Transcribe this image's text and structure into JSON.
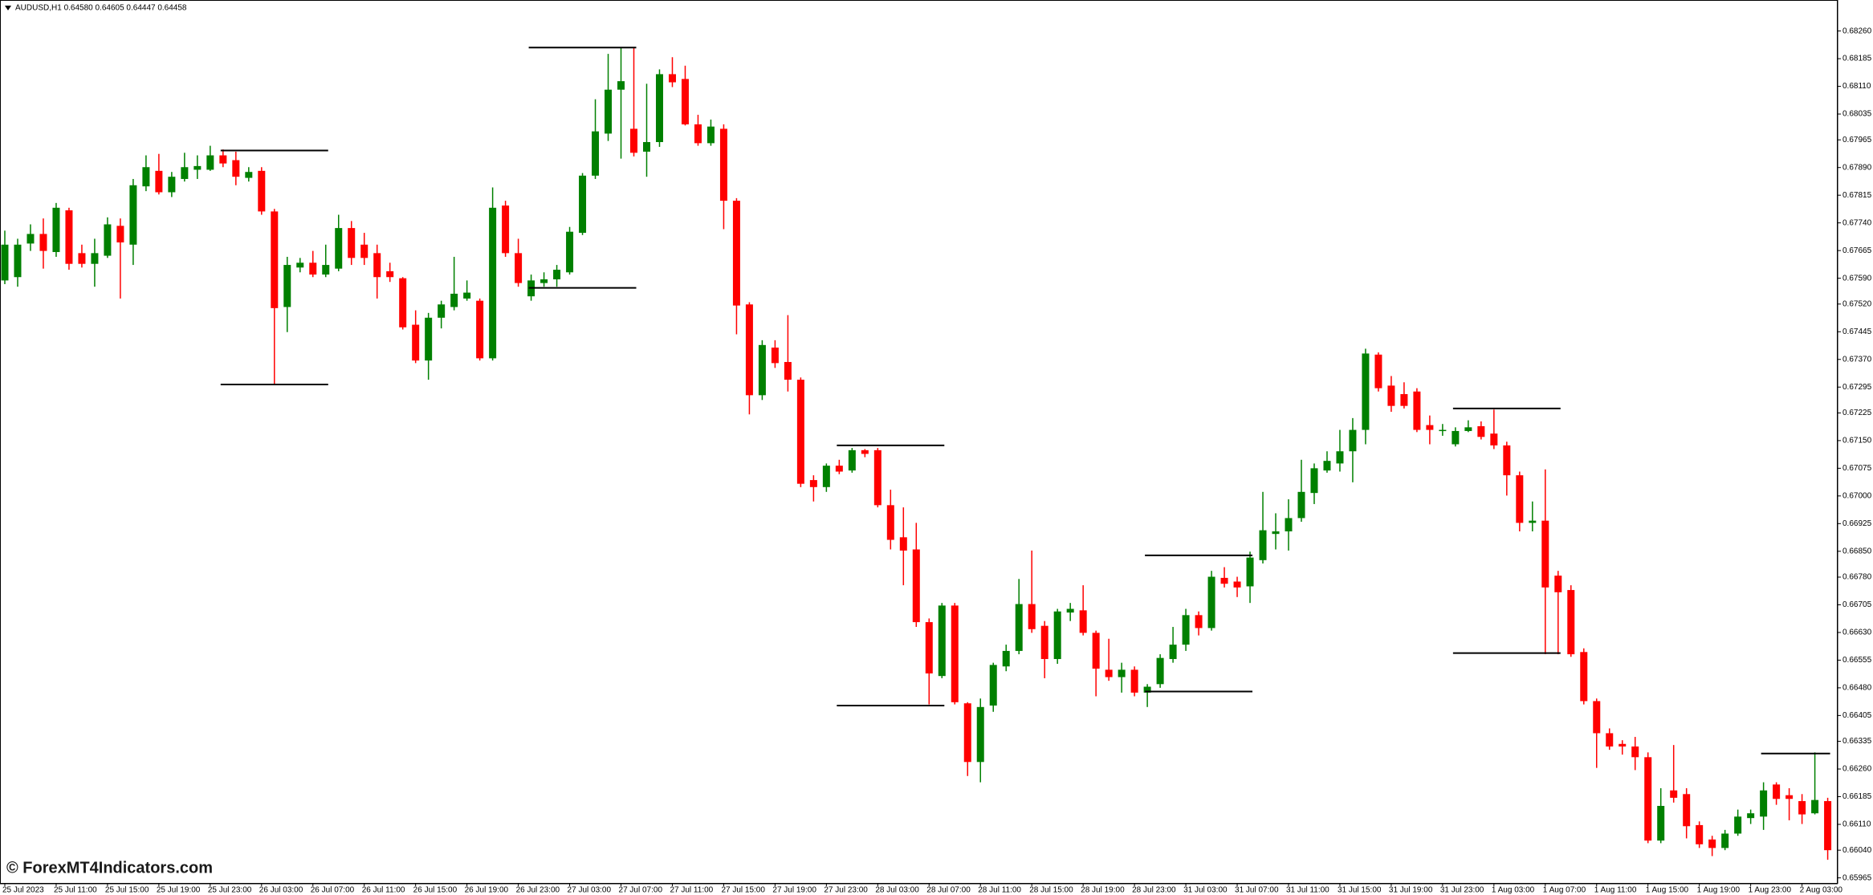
{
  "chart_data": {
    "type": "candlestick",
    "title": "AUDUSD,H1  0.64580 0.64605 0.64447 0.64458",
    "watermark": "© ForexMT4Indicators.com",
    "up_color": "#008000",
    "down_color": "#ff0000",
    "level_color": "#000000",
    "categories": [
      "25 Jul 2023",
      null,
      null,
      null,
      "25 Jul 11:00",
      null,
      null,
      null,
      "25 Jul 15:00",
      null,
      null,
      null,
      "25 Jul 19:00",
      null,
      null,
      null,
      "25 Jul 23:00",
      null,
      null,
      null,
      "26 Jul 03:00",
      null,
      null,
      null,
      "26 Jul 07:00",
      null,
      null,
      null,
      "26 Jul 11:00",
      null,
      null,
      null,
      "26 Jul 15:00",
      null,
      null,
      null,
      "26 Jul 19:00",
      null,
      null,
      null,
      "26 Jul 23:00",
      null,
      null,
      null,
      "27 Jul 03:00",
      null,
      null,
      null,
      "27 Jul 07:00",
      null,
      null,
      null,
      "27 Jul 11:00",
      null,
      null,
      null,
      "27 Jul 15:00",
      null,
      null,
      null,
      "27 Jul 19:00",
      null,
      null,
      null,
      "27 Jul 23:00",
      null,
      null,
      null,
      "28 Jul 03:00",
      null,
      null,
      null,
      "28 Jul 07:00",
      null,
      null,
      null,
      "28 Jul 11:00",
      null,
      null,
      null,
      "28 Jul 15:00",
      null,
      null,
      null,
      "28 Jul 19:00",
      null,
      null,
      null,
      "28 Jul 23:00",
      null,
      null,
      null,
      "31 Jul 03:00",
      null,
      null,
      null,
      "31 Jul 07:00",
      null,
      null,
      null,
      "31 Jul 11:00",
      null,
      null,
      null,
      "31 Jul 15:00",
      null,
      null,
      null,
      "31 Jul 19:00",
      null,
      null,
      null,
      "31 Jul 23:00",
      null,
      null,
      null,
      "1 Aug 03:00",
      null,
      null,
      null,
      "1 Aug 07:00",
      null,
      null,
      null,
      "1 Aug 11:00",
      null,
      null,
      null,
      "1 Aug 15:00",
      null,
      null,
      null,
      "1 Aug 19:00",
      null,
      null,
      null,
      "1 Aug 23:00",
      null,
      null,
      null,
      "2 Aug 03:00",
      null,
      null
    ],
    "open": [
      0.67584,
      0.67593,
      0.67684,
      0.6771,
      0.67661,
      0.67774,
      0.67658,
      0.67629,
      0.67651,
      0.67732,
      0.67681,
      0.67839,
      0.67881,
      0.67823,
      0.67859,
      0.67884,
      0.67884,
      0.67923,
      0.6791,
      0.67862,
      0.67881,
      0.67771,
      0.67512,
      0.67619,
      0.67632,
      0.676,
      0.67616,
      0.67726,
      0.67681,
      0.67658,
      0.67609,
      0.6759,
      0.67464,
      0.67367,
      0.67483,
      0.67512,
      0.67535,
      0.67529,
      0.67373,
      0.67787,
      0.67658,
      0.67541,
      0.67577,
      0.67587,
      0.67606,
      0.67713,
      0.67868,
      0.67982,
      0.68101,
      0.67995,
      0.67933,
      0.67959,
      0.68143,
      0.6813,
      0.68007,
      0.67956,
      0.67995,
      0.678,
      0.67519,
      0.67273,
      0.67402,
      0.67363,
      0.67315,
      0.67043,
      0.67024,
      0.67082,
      0.67069,
      0.67124,
      0.67124,
      0.66975,
      0.66888,
      0.66855,
      0.66658,
      0.66512,
      0.66703,
      0.66438,
      0.66279,
      0.66432,
      0.66538,
      0.6658,
      0.66707,
      0.66648,
      0.66558,
      0.66684,
      0.6669,
      0.66629,
      0.66529,
      0.66509,
      0.66529,
      0.66467,
      0.6649,
      0.66558,
      0.66597,
      0.66677,
      0.66642,
      0.66778,
      0.66768,
      0.66755,
      0.66826,
      0.66897,
      0.66904,
      0.6694,
      0.67008,
      0.67069,
      0.67088,
      0.67121,
      0.67179,
      0.67383,
      0.67299,
      0.67276,
      0.67283,
      0.67192,
      0.67176,
      0.6714,
      0.67176,
      0.67189,
      0.67169,
      0.67137,
      0.67056,
      0.66927,
      0.66933,
      0.66784,
      0.66745,
      0.66577,
      0.66444,
      0.66357,
      0.66328,
      0.66321,
      0.66292,
      0.66066,
      0.66202,
      0.66192,
      0.66108,
      0.66069,
      0.66046,
      0.66085,
      0.66127,
      0.66131,
      0.66218,
      0.66189,
      0.66173,
      0.6614,
      0.66173
    ],
    "high": [
      0.67719,
      0.67697,
      0.67736,
      0.67752,
      0.67794,
      0.67781,
      0.67681,
      0.67697,
      0.67755,
      0.67752,
      0.67859,
      0.67923,
      0.67927,
      0.67878,
      0.6793,
      0.67923,
      0.67949,
      0.67939,
      0.67933,
      0.67891,
      0.67891,
      0.67778,
      0.67648,
      0.67645,
      0.67664,
      0.67681,
      0.67762,
      0.67745,
      0.67713,
      0.67681,
      0.67632,
      0.67593,
      0.67503,
      0.67496,
      0.67529,
      0.67648,
      0.67584,
      0.67535,
      0.67836,
      0.678,
      0.67697,
      0.676,
      0.67606,
      0.67626,
      0.67729,
      0.67875,
      0.68075,
      0.68198,
      0.68215,
      0.68215,
      0.68117,
      0.68156,
      0.68189,
      0.68166,
      0.68033,
      0.6802,
      0.68007,
      0.67807,
      0.67525,
      0.67422,
      0.67422,
      0.6749,
      0.67321,
      0.67056,
      0.67088,
      0.67098,
      0.6713,
      0.67127,
      0.6713,
      0.67017,
      0.66969,
      0.66927,
      0.66668,
      0.6671,
      0.6671,
      0.66441,
      0.66451,
      0.66548,
      0.66597,
      0.66775,
      0.66852,
      0.66661,
      0.66694,
      0.6671,
      0.66758,
      0.66635,
      0.66613,
      0.66548,
      0.66538,
      0.6649,
      0.66571,
      0.66645,
      0.66694,
      0.66687,
      0.66797,
      0.66807,
      0.66781,
      0.66849,
      0.67011,
      0.66953,
      0.66991,
      0.67098,
      0.67088,
      0.67121,
      0.67179,
      0.67211,
      0.67399,
      0.67389,
      0.67325,
      0.67308,
      0.67292,
      0.67218,
      0.67195,
      0.67186,
      0.67205,
      0.67202,
      0.67234,
      0.67147,
      0.67066,
      0.66985,
      0.67072,
      0.66797,
      0.66758,
      0.66587,
      0.66451,
      0.6637,
      0.66338,
      0.66347,
      0.66305,
      0.66208,
      0.66325,
      0.66208,
      0.66118,
      0.66079,
      0.66095,
      0.6615,
      0.6615,
      0.66224,
      0.66224,
      0.66208,
      0.66192,
      0.66305,
      0.66182
    ],
    "low": [
      0.67574,
      0.67567,
      0.67664,
      0.67616,
      0.67648,
      0.67613,
      0.67619,
      0.67567,
      0.67645,
      0.67535,
      0.67626,
      0.67826,
      0.67817,
      0.6781,
      0.67852,
      0.67859,
      0.67881,
      0.67891,
      0.67842,
      0.67852,
      0.67762,
      0.67302,
      0.67444,
      0.67606,
      0.67593,
      0.67593,
      0.67609,
      0.67626,
      0.67626,
      0.67535,
      0.6758,
      0.67451,
      0.6736,
      0.67315,
      0.67454,
      0.67503,
      0.67529,
      0.67367,
      0.67367,
      0.67648,
      0.67567,
      0.67529,
      0.67567,
      0.67567,
      0.676,
      0.67707,
      0.67859,
      0.67962,
      0.67914,
      0.6792,
      0.67865,
      0.67946,
      0.68108,
      0.68004,
      0.67949,
      0.67949,
      0.67723,
      0.67438,
      0.67221,
      0.6726,
      0.67347,
      0.67283,
      0.67024,
      0.66985,
      0.67011,
      0.67059,
      0.67063,
      0.67105,
      0.66969,
      0.66855,
      0.66758,
      0.66645,
      0.66435,
      0.66506,
      0.66435,
      0.66241,
      0.66224,
      0.66415,
      0.66525,
      0.66571,
      0.66629,
      0.66506,
      0.66545,
      0.66661,
      0.66622,
      0.66457,
      0.66499,
      0.66467,
      0.66457,
      0.66428,
      0.6648,
      0.66548,
      0.6658,
      0.66622,
      0.66635,
      0.66752,
      0.66726,
      0.6671,
      0.66817,
      0.66855,
      0.66852,
      0.6693,
      0.66978,
      0.67063,
      0.67066,
      0.67037,
      0.6714,
      0.67283,
      0.67228,
      0.67237,
      0.67173,
      0.6714,
      0.67163,
      0.67134,
      0.67173,
      0.67153,
      0.67127,
      0.67001,
      0.66904,
      0.66904,
      0.66571,
      0.66571,
      0.66564,
      0.66435,
      0.66263,
      0.66312,
      0.66299,
      0.66257,
      0.66059,
      0.66059,
      0.66169,
      0.66072,
      0.66046,
      0.66024,
      0.6604,
      0.66079,
      0.66111,
      0.66095,
      0.66163,
      0.66121,
      0.66111,
      0.66137,
      0.66014
    ],
    "close": [
      0.67681,
      0.67681,
      0.6771,
      0.67664,
      0.67781,
      0.67629,
      0.67629,
      0.67658,
      0.67736,
      0.67687,
      0.67842,
      0.67891,
      0.67823,
      0.67865,
      0.67891,
      0.67894,
      0.67923,
      0.67901,
      0.67865,
      0.67878,
      0.67771,
      0.67509,
      0.67626,
      0.67632,
      0.676,
      0.67626,
      0.67726,
      0.67645,
      0.67645,
      0.67593,
      0.67593,
      0.67457,
      0.67367,
      0.67483,
      0.67519,
      0.67548,
      0.67551,
      0.67373,
      0.67781,
      0.67658,
      0.67577,
      0.67584,
      0.67587,
      0.67613,
      0.67716,
      0.67868,
      0.67988,
      0.68101,
      0.68124,
      0.6793,
      0.67959,
      0.68143,
      0.68121,
      0.68007,
      0.67956,
      0.68001,
      0.678,
      0.67516,
      0.67273,
      0.67409,
      0.6736,
      0.67315,
      0.67033,
      0.67024,
      0.67082,
      0.67066,
      0.67124,
      0.67114,
      0.66975,
      0.66881,
      0.66852,
      0.66658,
      0.66519,
      0.66703,
      0.66441,
      0.66279,
      0.66428,
      0.66542,
      0.6658,
      0.66707,
      0.66639,
      0.66558,
      0.66687,
      0.66694,
      0.66629,
      0.66532,
      0.66509,
      0.66529,
      0.66467,
      0.66483,
      0.66561,
      0.66597,
      0.66677,
      0.66642,
      0.66781,
      0.66762,
      0.66752,
      0.66833,
      0.66907,
      0.66904,
      0.6694,
      0.67011,
      0.67075,
      0.67095,
      0.67121,
      0.67179,
      0.67386,
      0.67292,
      0.67244,
      0.67244,
      0.67179,
      0.67179,
      0.67179,
      0.67176,
      0.67186,
      0.6716,
      0.67137,
      0.67056,
      0.66927,
      0.66933,
      0.66752,
      0.66739,
      0.66571,
      0.66444,
      0.66357,
      0.66321,
      0.66321,
      0.66292,
      0.66066,
      0.6616,
      0.66182,
      0.66105,
      0.66056,
      0.66046,
      0.66085,
      0.66131,
      0.6614,
      0.66202,
      0.66179,
      0.66179,
      0.66137,
      0.66176,
      0.6604
    ],
    "levels": [
      {
        "from": 17,
        "to": 25,
        "values": [
          0.67936,
          0.67302
        ]
      },
      {
        "from": 41,
        "to": 49,
        "values": [
          0.68215,
          0.67564
        ]
      },
      {
        "from": 65,
        "to": 73,
        "values": [
          0.67137,
          0.66432
        ]
      },
      {
        "from": 89,
        "to": 97,
        "values": [
          0.66839,
          0.6647
        ]
      },
      {
        "from": 113,
        "to": 121,
        "values": [
          0.67237,
          0.66574
        ]
      },
      {
        "from": 137,
        "to": 142,
        "values": [
          0.66302
        ]
      }
    ],
    "ylim": [
      0.65949,
      0.68344
    ],
    "yticks": [
      {
        "value": 0.6826,
        "label": "0.68260"
      },
      {
        "value": 0.68185,
        "label": "0.68185"
      },
      {
        "value": 0.6811,
        "label": "0.68110"
      },
      {
        "value": 0.68035,
        "label": "0.68035"
      },
      {
        "value": 0.67965,
        "label": "0.67965"
      },
      {
        "value": 0.6789,
        "label": "0.67890"
      },
      {
        "value": 0.67815,
        "label": "0.67815"
      },
      {
        "value": 0.6774,
        "label": "0.67740"
      },
      {
        "value": 0.67665,
        "label": "0.67665"
      },
      {
        "value": 0.6759,
        "label": "0.67590"
      },
      {
        "value": 0.6752,
        "label": "0.67520"
      },
      {
        "value": 0.67445,
        "label": "0.67445"
      },
      {
        "value": 0.6737,
        "label": "0.67370"
      },
      {
        "value": 0.67295,
        "label": "0.67295"
      },
      {
        "value": 0.67225,
        "label": "0.67225"
      },
      {
        "value": 0.6715,
        "label": "0.67150"
      },
      {
        "value": 0.67075,
        "label": "0.67075"
      },
      {
        "value": 0.67,
        "label": "0.67000"
      },
      {
        "value": 0.66925,
        "label": "0.66925"
      },
      {
        "value": 0.6685,
        "label": "0.66850"
      },
      {
        "value": 0.6678,
        "label": "0.66780"
      },
      {
        "value": 0.66705,
        "label": "0.66705"
      },
      {
        "value": 0.6663,
        "label": "0.66630"
      },
      {
        "value": 0.66555,
        "label": "0.66555"
      },
      {
        "value": 0.6648,
        "label": "0.66480"
      },
      {
        "value": 0.66405,
        "label": "0.66405"
      },
      {
        "value": 0.66335,
        "label": "0.66335"
      },
      {
        "value": 0.6626,
        "label": "0.66260"
      },
      {
        "value": 0.66185,
        "label": "0.66185"
      },
      {
        "value": 0.6611,
        "label": "0.66110"
      },
      {
        "value": 0.6604,
        "label": "0.66040"
      },
      {
        "value": 0.65965,
        "label": "0.65965"
      }
    ],
    "grid": false
  }
}
